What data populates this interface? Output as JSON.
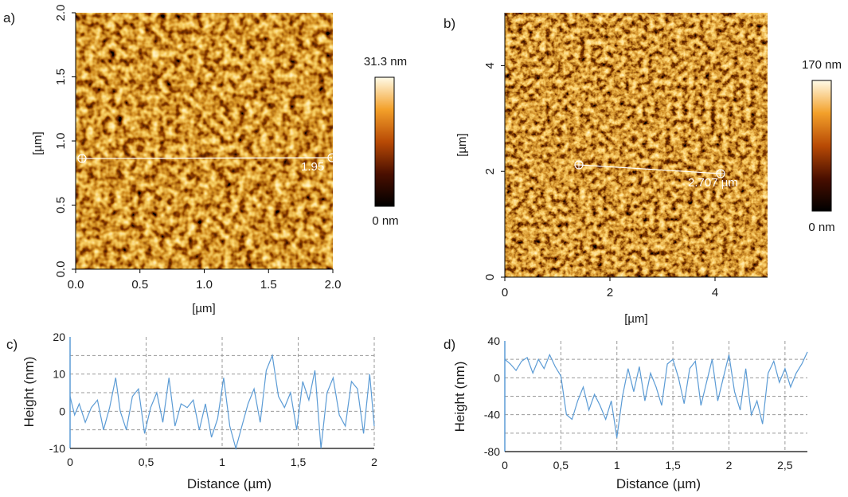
{
  "panels": {
    "a": {
      "label": "a)",
      "xlabel": "[µm]",
      "ylabel": "[µm]",
      "xticks": [
        "0.0",
        "0.5",
        "1.0",
        "1.5",
        "2.0"
      ],
      "yticks": [
        "0.0",
        "0.5",
        "1.0",
        "1.5",
        "2.0"
      ],
      "colorbar_max": "31.3 nm",
      "colorbar_min": "0 nm",
      "line_measure": "1.95",
      "scan_size_um": 2.0
    },
    "b": {
      "label": "b)",
      "xlabel": "[µm]",
      "ylabel": "[µm]",
      "xticks": [
        "0",
        "2",
        "4"
      ],
      "yticks": [
        "0",
        "2",
        "4"
      ],
      "colorbar_max": "170 nm",
      "colorbar_min": "0 nm",
      "line_measure": "2.707 µm",
      "scan_size_um": 5.0
    },
    "c": {
      "label": "c)",
      "xlabel": "Distance (µm)",
      "ylabel": "Height (nm)",
      "xticks": [
        "0",
        "0,5",
        "1",
        "1,5",
        "2"
      ],
      "yticks": [
        "20",
        "10",
        "0",
        "-10"
      ]
    },
    "d": {
      "label": "d)",
      "xlabel": "Distance (µm)",
      "ylabel": "Height (nm)",
      "xticks": [
        "0",
        "0,5",
        "1",
        "1,5",
        "2",
        "2,5"
      ],
      "yticks": [
        "40",
        "0",
        "-40",
        "-80"
      ]
    }
  },
  "chart_data": [
    {
      "type": "line",
      "panel": "c",
      "xlabel": "Distance (µm)",
      "ylabel": "Height (nm)",
      "xlim": [
        0,
        2.0
      ],
      "ylim": [
        -10,
        20
      ],
      "series": [
        {
          "color": "#5b9bd5",
          "x": [
            0,
            0.03,
            0.06,
            0.1,
            0.14,
            0.18,
            0.22,
            0.26,
            0.3,
            0.33,
            0.37,
            0.41,
            0.45,
            0.49,
            0.53,
            0.57,
            0.61,
            0.65,
            0.69,
            0.73,
            0.77,
            0.81,
            0.85,
            0.89,
            0.93,
            0.97,
            1.01,
            1.05,
            1.09,
            1.13,
            1.17,
            1.21,
            1.25,
            1.29,
            1.33,
            1.37,
            1.41,
            1.45,
            1.49,
            1.53,
            1.57,
            1.61,
            1.65,
            1.69,
            1.73,
            1.77,
            1.81,
            1.85,
            1.89,
            1.93,
            1.97,
            2.0
          ],
          "y": [
            4,
            -1,
            2,
            -3,
            1,
            3,
            -5,
            1,
            9,
            0,
            -5,
            4,
            6,
            -6,
            1,
            5,
            -3,
            9,
            -4,
            2,
            1,
            3,
            -5,
            2,
            -7,
            -2,
            9,
            -4,
            -10,
            -4,
            2,
            6,
            -3,
            11,
            15,
            4,
            1,
            5,
            -5,
            8,
            3,
            11,
            -10,
            5,
            9,
            -1,
            -4,
            8,
            6,
            -6,
            10,
            -4
          ]
        }
      ]
    },
    {
      "type": "line",
      "panel": "d",
      "xlabel": "Distance (µm)",
      "ylabel": "Height (nm)",
      "xlim": [
        0,
        2.7
      ],
      "ylim": [
        -80,
        40
      ],
      "series": [
        {
          "color": "#5b9bd5",
          "x": [
            0,
            0.05,
            0.1,
            0.15,
            0.2,
            0.25,
            0.3,
            0.35,
            0.4,
            0.45,
            0.5,
            0.55,
            0.6,
            0.65,
            0.7,
            0.75,
            0.8,
            0.85,
            0.9,
            0.95,
            1.0,
            1.05,
            1.1,
            1.15,
            1.2,
            1.25,
            1.3,
            1.35,
            1.4,
            1.45,
            1.5,
            1.55,
            1.6,
            1.65,
            1.7,
            1.75,
            1.8,
            1.85,
            1.9,
            1.95,
            2.0,
            2.05,
            2.1,
            2.15,
            2.2,
            2.25,
            2.3,
            2.35,
            2.4,
            2.45,
            2.5,
            2.55,
            2.6,
            2.65,
            2.7
          ],
          "y": [
            20,
            15,
            8,
            18,
            22,
            5,
            20,
            10,
            25,
            12,
            2,
            -40,
            -45,
            -25,
            -10,
            -35,
            -18,
            -30,
            -45,
            -25,
            -65,
            -20,
            10,
            -15,
            12,
            -25,
            5,
            -10,
            -30,
            15,
            20,
            0,
            -28,
            10,
            18,
            -30,
            -5,
            20,
            -25,
            0,
            25,
            -15,
            -35,
            10,
            -40,
            -25,
            -50,
            5,
            18,
            -5,
            10,
            -10,
            5,
            15,
            28
          ]
        }
      ]
    }
  ]
}
